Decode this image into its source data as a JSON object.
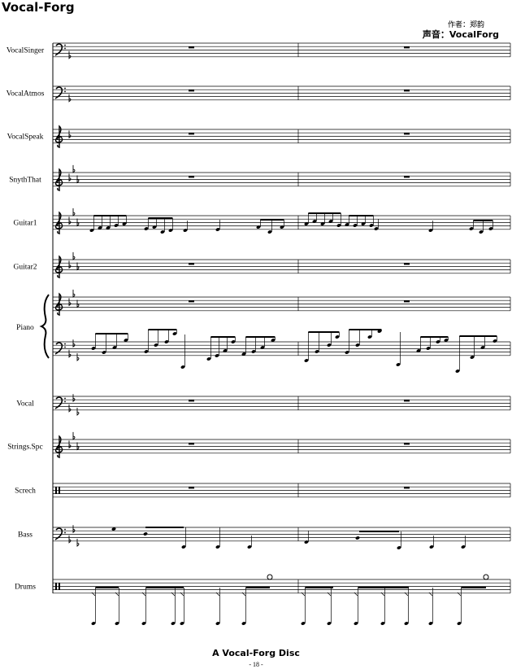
{
  "header": {
    "title": "Vocal-Forg",
    "composer": "作者：郑韵",
    "voice": "声音：VocalForg"
  },
  "staves": [
    "VocalSinger",
    "VocalAtmos",
    "VocalSpeak",
    "SnythThat",
    "Guitar1",
    "Guitar2",
    "Piano",
    "Vocal",
    "Strings.Spc",
    "Screch",
    "Bass",
    "Drums"
  ],
  "footer": {
    "disc": "A Vocal-Forg Disc",
    "page": "- 18 -"
  }
}
